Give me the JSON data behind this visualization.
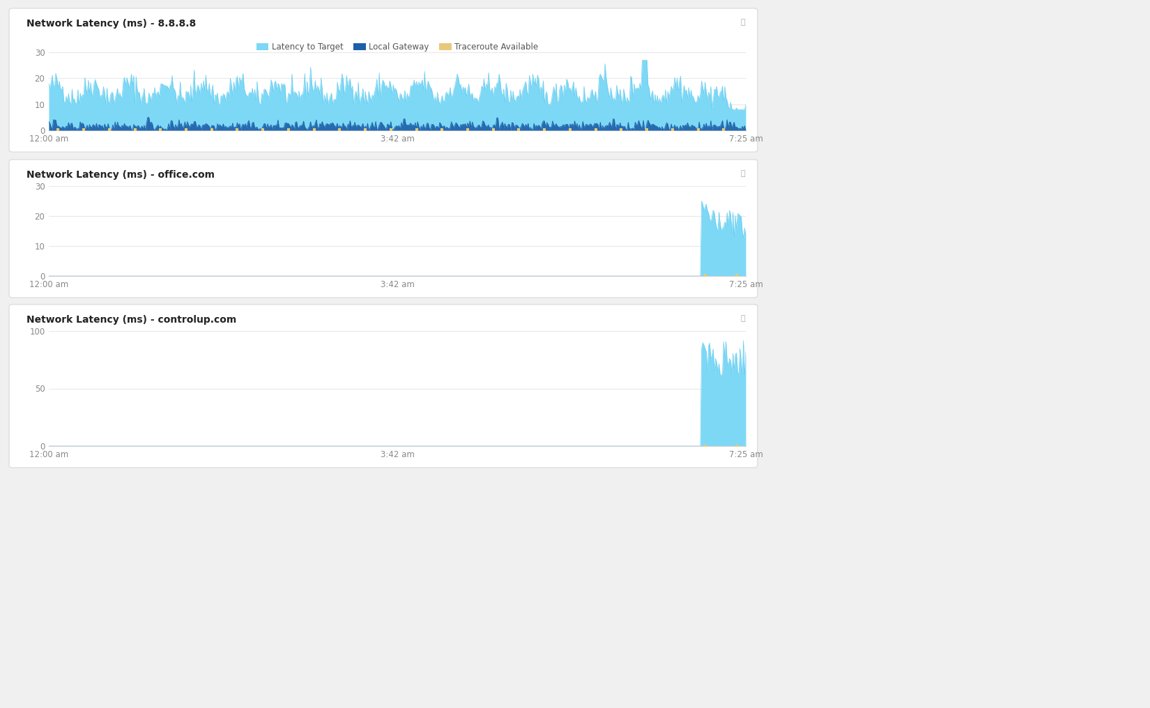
{
  "background_color": "#f0f0f0",
  "panel_bg": "#ffffff",
  "title1": "Network Latency (ms) - 8.8.8.8",
  "title2": "Network Latency (ms) - office.com",
  "title3": "Network Latency (ms) - controlup.com",
  "x_ticks": [
    "12:00 am",
    "3:42 am",
    "7:25 am"
  ],
  "legend_labels": [
    "Latency to Target",
    "Local Gateway",
    "Traceroute Available"
  ],
  "color_latency": "#7dd8f5",
  "color_latency_line": "#5bc8ef",
  "color_gateway": "#1e5fa8",
  "color_traceroute": "#e8c97a",
  "chart1_ylim": [
    0,
    30
  ],
  "chart1_yticks": [
    0,
    10,
    20,
    30
  ],
  "chart2_ylim": [
    0,
    30
  ],
  "chart2_yticks": [
    0,
    10,
    20,
    30
  ],
  "chart3_ylim": [
    0,
    100
  ],
  "chart3_yticks": [
    0,
    50,
    100
  ],
  "n_points": 600,
  "title_fontsize": 10,
  "tick_fontsize": 8.5,
  "grid_color": "#e8e8e8",
  "text_color": "#555555"
}
